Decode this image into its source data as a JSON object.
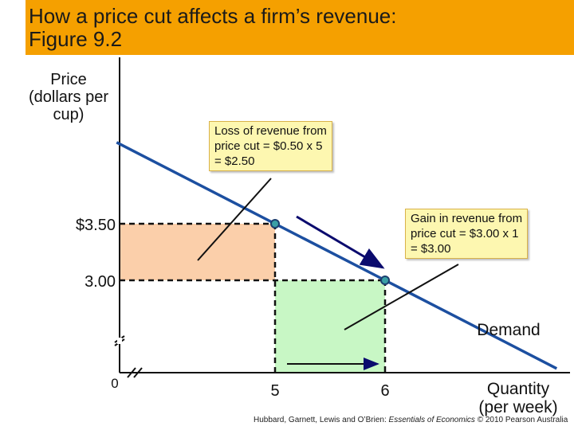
{
  "header": {
    "title_line1": "How a price cut affects a firm’s revenue:",
    "title_line2": "Figure 9.2"
  },
  "chart_data": {
    "type": "line",
    "ylabel_lines": [
      "Price",
      "(dollars per",
      "cup)"
    ],
    "xlabel_lines": [
      "Quantity",
      "(per week)"
    ],
    "origin_label": "0",
    "x_ticks": [
      {
        "value": 5,
        "label": "5"
      },
      {
        "value": 6,
        "label": "6"
      }
    ],
    "y_ticks": [
      {
        "value": 3.5,
        "label": "$3.50"
      },
      {
        "value": 3.0,
        "label": "3.00"
      }
    ],
    "axis_breaks": true,
    "series": [
      {
        "name": "Demand",
        "x": [
          3.56,
          5,
          6,
          7.56
        ],
        "y": [
          4.22,
          3.5,
          3.0,
          2.22
        ]
      }
    ],
    "points": [
      {
        "x": 5,
        "y": 3.5
      },
      {
        "x": 6,
        "y": 3.0
      }
    ],
    "shaded_areas": [
      {
        "role": "loss",
        "x": [
          0,
          5
        ],
        "y": [
          3.0,
          3.5
        ],
        "color": "#fbcfaa"
      },
      {
        "role": "gain",
        "x": [
          5,
          6
        ],
        "y": [
          0,
          3.0
        ],
        "color": "#c8f7c5"
      }
    ],
    "colors": {
      "demand": "#1c4fa0",
      "point_fill": "#3aa0a6",
      "arrow": "#0b0b6e"
    },
    "callouts": [
      {
        "role": "loss",
        "lines": [
          "Loss of revenue from",
          "price cut = $0.50 x 5",
          "= $2.50"
        ]
      },
      {
        "role": "gain",
        "lines": [
          "Gain in revenue from",
          "price cut = $3.00 x 1",
          "= $3.00"
        ]
      }
    ]
  },
  "credit": {
    "prefix": "Hubbard, Garnett, Lewis and O’Brien: ",
    "book": "Essentials of Economics",
    "suffix": " © 2010 Pearson Australia"
  }
}
